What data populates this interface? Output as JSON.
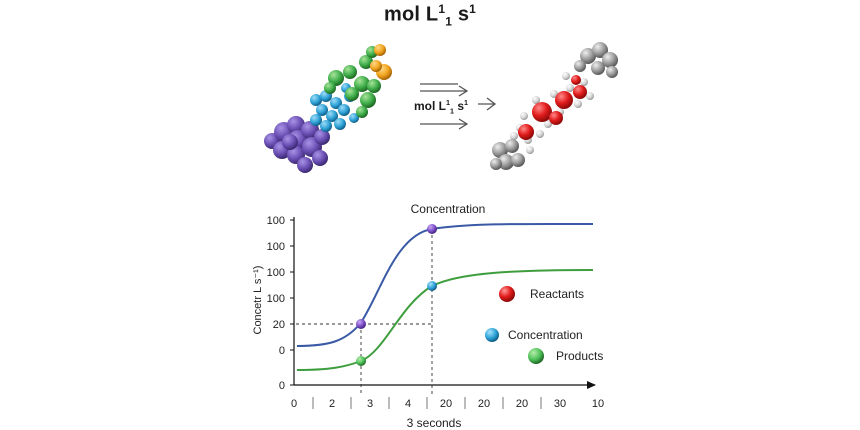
{
  "header": {
    "title_main": "mol L",
    "title_sup": "1",
    "title_sub": "1",
    "title_end": " s",
    "title_end_sup": "1"
  },
  "reaction": {
    "label_main": "mol L",
    "label_sup": "1",
    "label_sub": "1",
    "label_end": " s",
    "label_end_sup": "1"
  },
  "colors": {
    "purple": "#6b4fb4",
    "blue": "#2fa3d8",
    "green": "#3fae4a",
    "orange": "#f2a51f",
    "red": "#e21b1b",
    "gray": "#9a9a9a",
    "curve_blue": "#3a5aa6",
    "curve_green": "#3e9e3e"
  },
  "chart_data": {
    "type": "line",
    "title": "Concentration",
    "ylabel": "Concetr L s⁻¹)",
    "xlabel": "3  seconds",
    "y_tick_labels": [
      "100",
      "100",
      "100",
      "100",
      "20",
      "0",
      "0"
    ],
    "x_tick_labels": [
      "0",
      "2",
      "3",
      "4",
      "20",
      "20",
      "20",
      "30",
      "10"
    ],
    "series": [
      {
        "name": "",
        "color": "#3a5aa6",
        "shape": "sigmoid-high"
      },
      {
        "name": "",
        "color": "#3e9e3e",
        "shape": "sigmoid-low"
      }
    ],
    "markers": [
      {
        "series": 0,
        "at": "x=3",
        "color": "#7d4fc9"
      },
      {
        "series": 0,
        "at": "x=20",
        "color": "#7d4fc9"
      },
      {
        "series": 1,
        "at": "x=3",
        "color": "#4fc25a"
      },
      {
        "series": 1,
        "at": "x=20",
        "color": "#2fa3d8"
      }
    ],
    "legend": [
      {
        "label": "Reactants",
        "color": "#e21b1b"
      },
      {
        "label": "Concentration",
        "color": "#2fa3d8"
      },
      {
        "label": "Products",
        "color": "#3fae4a"
      }
    ]
  }
}
